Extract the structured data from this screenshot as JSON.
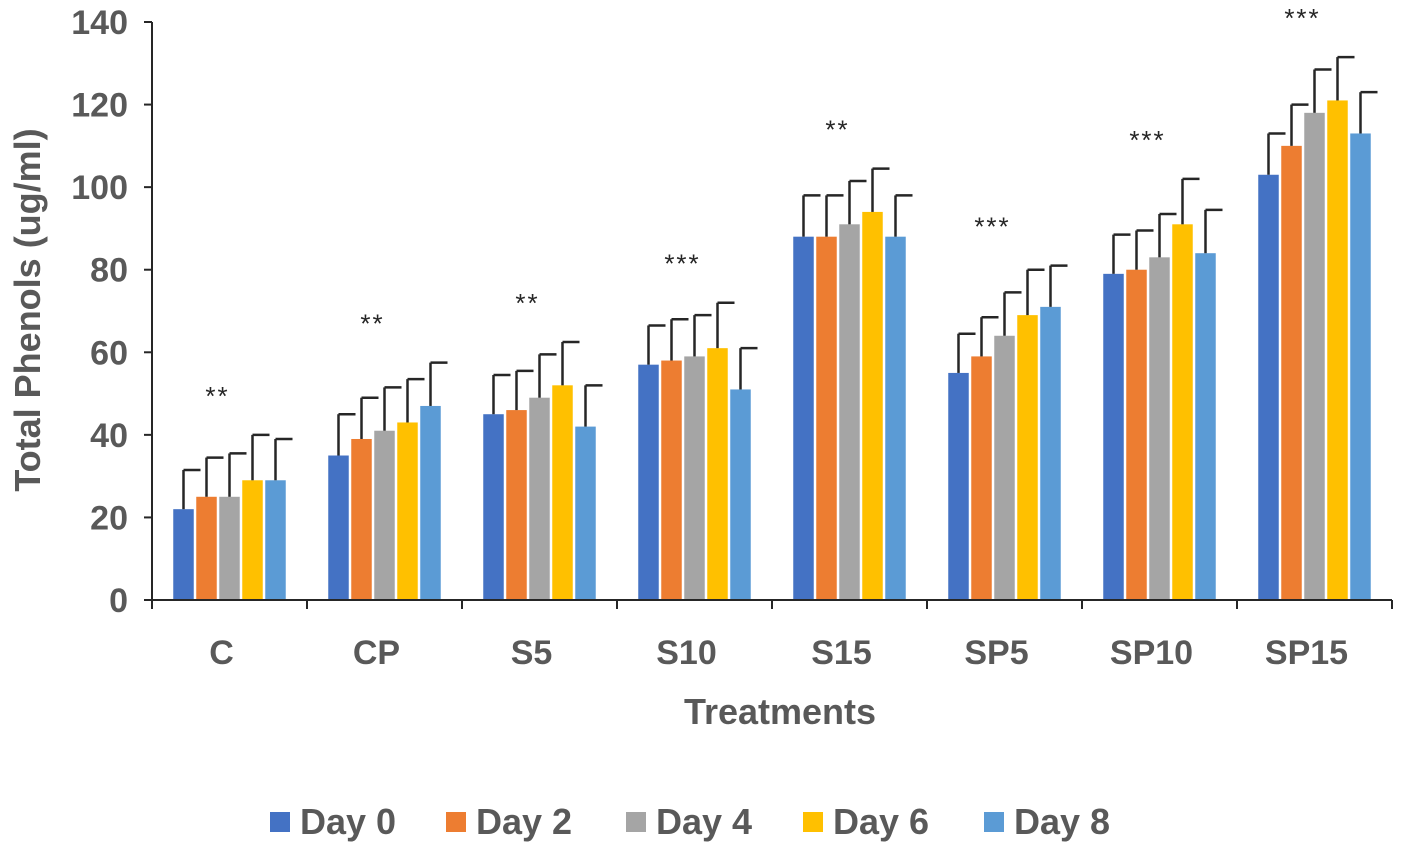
{
  "chart_data": {
    "type": "bar",
    "title": "",
    "xlabel": "Treatments",
    "ylabel": "Total Phenols (ug/ml)",
    "ylim": [
      0,
      140
    ],
    "yticks": [
      0,
      20,
      40,
      60,
      80,
      100,
      120,
      140
    ],
    "grid": false,
    "legend_position": "bottom",
    "categories": [
      "C",
      "CP",
      "S5",
      "S10",
      "S15",
      "SP5",
      "SP10",
      "SP15"
    ],
    "significance": [
      "**",
      "**",
      "**",
      "***",
      "**",
      "***",
      "***",
      "***"
    ],
    "series": [
      {
        "name": "Day 0",
        "color": "#4472C4",
        "values": [
          22,
          35,
          45,
          57,
          88,
          55,
          79,
          103
        ],
        "errors": [
          9.5,
          10,
          9.5,
          9.5,
          10,
          9.5,
          9.5,
          10
        ]
      },
      {
        "name": "Day 2",
        "color": "#ED7D31",
        "values": [
          25,
          39,
          46,
          58,
          88,
          59,
          80,
          110
        ],
        "errors": [
          9.5,
          10,
          9.5,
          10,
          10,
          9.5,
          9.5,
          10
        ]
      },
      {
        "name": "Day 4",
        "color": "#A5A5A5",
        "values": [
          25,
          41,
          49,
          59,
          91,
          64,
          83,
          118
        ],
        "errors": [
          10.5,
          10.5,
          10.5,
          10,
          10.5,
          10.5,
          10.5,
          10.5
        ]
      },
      {
        "name": "Day 6",
        "color": "#FFC000",
        "values": [
          29,
          43,
          52,
          61,
          94,
          69,
          91,
          121
        ],
        "errors": [
          11,
          10.5,
          10.5,
          11,
          10.5,
          11,
          11,
          10.5
        ]
      },
      {
        "name": "Day 8",
        "color": "#5B9BD5",
        "values": [
          29,
          47,
          42,
          51,
          88,
          71,
          84,
          113
        ],
        "errors": [
          10,
          10.5,
          10,
          10,
          10,
          10,
          10.5,
          10
        ]
      }
    ]
  }
}
